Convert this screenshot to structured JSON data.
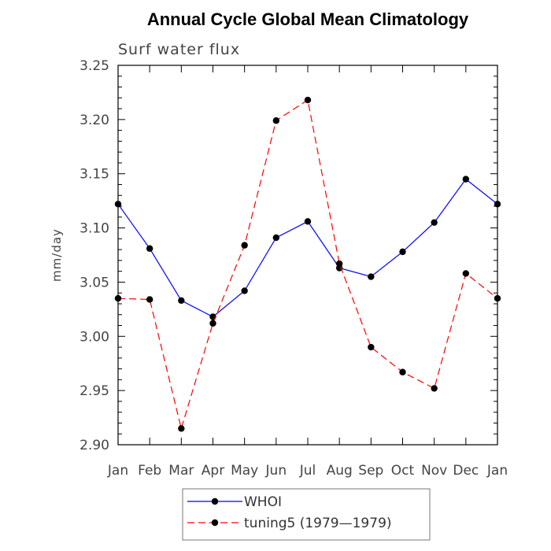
{
  "chart_data": {
    "type": "line",
    "title": "Annual Cycle Global Mean Climatology",
    "subtitle": "Surf water flux",
    "ylabel": "mm/day",
    "xlabel": "",
    "categories": [
      "Jan",
      "Feb",
      "Mar",
      "Apr",
      "May",
      "Jun",
      "Jul",
      "Aug",
      "Sep",
      "Oct",
      "Nov",
      "Dec",
      "Jan"
    ],
    "ylim": [
      2.9,
      3.25
    ],
    "yticks": [
      "2.90",
      "2.95",
      "3.00",
      "3.05",
      "3.10",
      "3.15",
      "3.20",
      "3.25"
    ],
    "series": [
      {
        "name": "WHOI",
        "color": "#0000ff",
        "line_style": "solid",
        "marker": "filled-circle",
        "values": [
          3.122,
          3.081,
          3.033,
          3.018,
          3.042,
          3.091,
          3.106,
          3.063,
          3.055,
          3.078,
          3.105,
          3.145,
          3.122
        ]
      },
      {
        "name": "tuning5 (1979—1979)",
        "color": "#ff0000",
        "line_style": "dashed",
        "marker": "filled-circle",
        "values": [
          3.035,
          3.034,
          2.915,
          3.012,
          3.084,
          3.199,
          3.218,
          3.067,
          2.99,
          2.967,
          2.952,
          3.058,
          3.035
        ]
      }
    ],
    "legend_position": "bottom"
  }
}
